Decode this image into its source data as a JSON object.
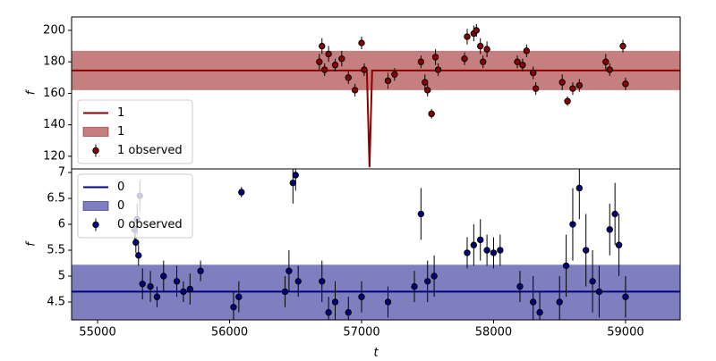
{
  "chart_data": [
    {
      "type": "errorband",
      "ylabel": "f",
      "xlim": [
        54803,
        59414
      ],
      "ylim": [
        112,
        208.5
      ],
      "yticks": [
        120,
        140,
        160,
        180,
        200
      ],
      "legend": "lower left",
      "band_alpha": 0.5,
      "series": [
        {
          "name": "1",
          "kind": "line",
          "color": "#8b0000",
          "x": [
            54803,
            57040,
            57060,
            57080,
            59414
          ],
          "values": [
            174.5,
            174.5,
            113,
            174.5,
            174.5
          ]
        },
        {
          "name": "1",
          "kind": "band",
          "color": "#8b0000",
          "x": [
            54803,
            59414
          ],
          "lower": [
            162,
            162
          ],
          "upper": [
            187,
            187
          ]
        },
        {
          "name": "1 observed",
          "kind": "errorbar",
          "color": "#8b0000",
          "x": [
            56680,
            56700,
            56720,
            56750,
            56800,
            56850,
            56900,
            56950,
            57000,
            57020,
            57200,
            57250,
            57450,
            57480,
            57500,
            57530,
            57560,
            57580,
            57780,
            57800,
            57850,
            57870,
            57900,
            57920,
            57950,
            58180,
            58220,
            58250,
            58300,
            58320,
            58520,
            58560,
            58600,
            58650,
            58850,
            58880,
            58980,
            59000
          ],
          "values": [
            180,
            190,
            175,
            185,
            178,
            182,
            170,
            162,
            192,
            175,
            168,
            172,
            180,
            167,
            162,
            147,
            183,
            175,
            182,
            196,
            198,
            200,
            190,
            180,
            188,
            180,
            178,
            187,
            173,
            163,
            167,
            155,
            163,
            165,
            180,
            175,
            190,
            166
          ],
          "errors": [
            5,
            5,
            4,
            5,
            4,
            5,
            4,
            4,
            4,
            4,
            5,
            4,
            4,
            5,
            4,
            3,
            5,
            4,
            4,
            5,
            5,
            4,
            5,
            4,
            5,
            4,
            4,
            4,
            4,
            4,
            5,
            3,
            4,
            4,
            5,
            4,
            4,
            4
          ]
        }
      ]
    },
    {
      "type": "errorband",
      "ylabel": "f",
      "xlabel": "t",
      "xlim": [
        54803,
        59414
      ],
      "ylim": [
        4.155,
        7.07
      ],
      "xticks": [
        55000,
        56000,
        57000,
        58000,
        59000
      ],
      "yticks": [
        4.5,
        5.0,
        5.5,
        6.0,
        6.5,
        7.0
      ],
      "legend": "upper left",
      "band_alpha": 0.5,
      "series": [
        {
          "name": "0",
          "kind": "line",
          "color": "#000080",
          "x": [
            54803,
            59414
          ],
          "values": [
            4.7,
            4.7
          ]
        },
        {
          "name": "0",
          "kind": "band",
          "color": "#000080",
          "x": [
            54803,
            59414
          ],
          "lower": [
            4.15,
            4.15
          ],
          "upper": [
            5.22,
            5.22
          ]
        },
        {
          "name": "0 observed",
          "kind": "errorbar",
          "color": "#000080",
          "x": [
            55280,
            55290,
            55300,
            55310,
            55320,
            55340,
            55400,
            55450,
            55500,
            55600,
            55650,
            55700,
            55780,
            56030,
            56070,
            56090,
            56420,
            56450,
            56480,
            56500,
            56520,
            56700,
            56750,
            56800,
            56900,
            57000,
            57200,
            57400,
            57450,
            57500,
            57550,
            57800,
            57850,
            57900,
            57950,
            58000,
            58050,
            58200,
            58300,
            58350,
            58500,
            58550,
            58600,
            58650,
            58700,
            58750,
            58800,
            58880,
            58920,
            58950,
            59000
          ],
          "values": [
            5.9,
            5.65,
            6.1,
            5.4,
            6.55,
            4.85,
            4.8,
            4.6,
            5.0,
            4.9,
            4.7,
            4.75,
            5.1,
            4.4,
            4.6,
            6.62,
            4.7,
            5.1,
            6.8,
            6.95,
            4.9,
            4.9,
            4.3,
            4.5,
            4.3,
            4.6,
            4.5,
            4.8,
            6.2,
            4.9,
            5.0,
            5.45,
            5.6,
            5.7,
            5.5,
            5.45,
            5.5,
            4.8,
            4.5,
            4.3,
            4.5,
            5.2,
            6.0,
            6.7,
            5.5,
            4.9,
            4.7,
            5.9,
            6.2,
            5.6,
            4.6
          ],
          "errors": [
            0.2,
            0.2,
            0.3,
            0.2,
            0.3,
            0.3,
            0.3,
            0.2,
            0.3,
            0.3,
            0.2,
            0.3,
            0.2,
            0.3,
            0.3,
            0.1,
            0.3,
            0.4,
            0.4,
            0.3,
            0.3,
            0.4,
            0.3,
            0.4,
            0.3,
            0.3,
            0.3,
            0.3,
            0.5,
            0.4,
            0.4,
            0.3,
            0.4,
            0.4,
            0.3,
            0.3,
            0.3,
            0.3,
            0.5,
            0.4,
            0.5,
            0.6,
            0.7,
            0.6,
            0.7,
            0.6,
            0.5,
            0.5,
            0.6,
            0.6,
            0.4
          ]
        }
      ]
    }
  ]
}
